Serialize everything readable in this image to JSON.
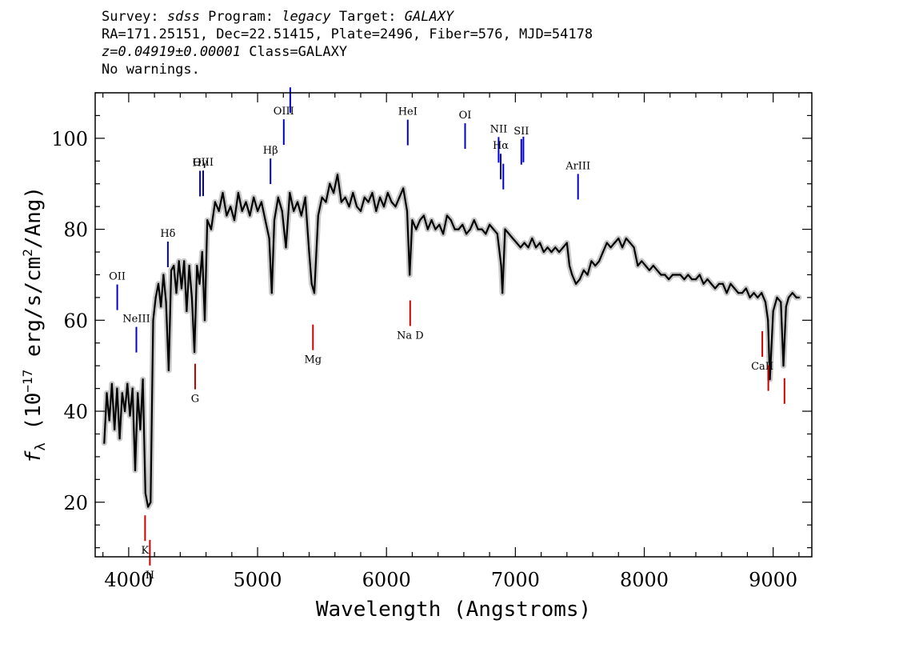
{
  "header": {
    "line1": {
      "survey_label": "Survey: ",
      "survey": "sdss",
      "program_label": " Program: ",
      "program": "legacy",
      "target_label": " Target: ",
      "target": "GALAXY"
    },
    "line2": "RA=171.25151, Dec=22.51415, Plate=2496, Fiber=576, MJD=54178",
    "line3": {
      "redshift": "z=0.04919±0.00001",
      "class": " Class=GALAXY"
    },
    "line4": "No warnings."
  },
  "chart_data": {
    "type": "line",
    "xlabel": "Wavelength (Angstroms)",
    "ylabel": "f_λ (10^-17 erg/s/cm^2/Ang)",
    "ylabel_parts": {
      "f": "f",
      "sub": "λ",
      "units_a": " (10",
      "exp1": "−17",
      "units_b": " erg/s/cm",
      "exp2": "2",
      "units_c": "/Ang)"
    },
    "xlim": [
      3740,
      9300
    ],
    "ylim": [
      8,
      110
    ],
    "x_ticks": [
      4000,
      5000,
      6000,
      7000,
      8000,
      9000
    ],
    "y_ticks": [
      20,
      40,
      60,
      80,
      100
    ],
    "grid": false,
    "series": [
      {
        "style": "spectrum",
        "color": "#000000",
        "error_color": "#c8c8c8",
        "x": [
          3810,
          3830,
          3850,
          3870,
          3890,
          3910,
          3930,
          3950,
          3970,
          3990,
          4010,
          4030,
          4050,
          4070,
          4090,
          4110,
          4130,
          4150,
          4170,
          4190,
          4210,
          4230,
          4250,
          4270,
          4290,
          4310,
          4330,
          4350,
          4370,
          4390,
          4410,
          4430,
          4450,
          4470,
          4490,
          4510,
          4530,
          4550,
          4570,
          4590,
          4610,
          4640,
          4670,
          4700,
          4730,
          4760,
          4790,
          4820,
          4850,
          4880,
          4910,
          4940,
          4970,
          5000,
          5030,
          5060,
          5090,
          5110,
          5130,
          5160,
          5190,
          5220,
          5250,
          5280,
          5310,
          5340,
          5370,
          5400,
          5420,
          5440,
          5470,
          5500,
          5530,
          5560,
          5590,
          5620,
          5650,
          5680,
          5710,
          5740,
          5770,
          5800,
          5830,
          5860,
          5890,
          5920,
          5950,
          5980,
          6010,
          6040,
          6070,
          6100,
          6130,
          6160,
          6180,
          6200,
          6230,
          6260,
          6290,
          6320,
          6350,
          6380,
          6410,
          6440,
          6470,
          6500,
          6530,
          6560,
          6590,
          6620,
          6650,
          6680,
          6710,
          6740,
          6770,
          6800,
          6830,
          6860,
          6890,
          6900,
          6920,
          6950,
          6980,
          7010,
          7040,
          7070,
          7100,
          7130,
          7160,
          7190,
          7220,
          7250,
          7280,
          7310,
          7340,
          7370,
          7400,
          7420,
          7440,
          7470,
          7500,
          7530,
          7560,
          7590,
          7620,
          7650,
          7680,
          7710,
          7740,
          7770,
          7800,
          7830,
          7860,
          7890,
          7920,
          7950,
          7980,
          8010,
          8040,
          8070,
          8100,
          8130,
          8160,
          8190,
          8220,
          8250,
          8280,
          8310,
          8340,
          8370,
          8400,
          8430,
          8460,
          8490,
          8520,
          8550,
          8580,
          8610,
          8640,
          8670,
          8700,
          8730,
          8760,
          8790,
          8820,
          8850,
          8880,
          8910,
          8940,
          8960,
          8975,
          9000,
          9030,
          9060,
          9080,
          9100,
          9120,
          9150,
          9180,
          9200
        ],
        "y": [
          33,
          44,
          38,
          46,
          36,
          45,
          34,
          44,
          40,
          46,
          39,
          45,
          27,
          44,
          36,
          47,
          22,
          19,
          20,
          60,
          65,
          68,
          63,
          70,
          64,
          49,
          71,
          72,
          66,
          73,
          67,
          73,
          62,
          72,
          65,
          53,
          72,
          68,
          75,
          60,
          82,
          80,
          86,
          84,
          88,
          83,
          85,
          82,
          88,
          84,
          86,
          83,
          87,
          84,
          86,
          82,
          78,
          66,
          82,
          87,
          84,
          76,
          88,
          84,
          86,
          83,
          87,
          75,
          68,
          66,
          83,
          87,
          86,
          90,
          88,
          92,
          86,
          87,
          85,
          88,
          85,
          84,
          87,
          86,
          88,
          84,
          87,
          85,
          88,
          86,
          85,
          87,
          89,
          84,
          70,
          82,
          80,
          82,
          83,
          80,
          82,
          80,
          81,
          79,
          83,
          82,
          80,
          80,
          81,
          79,
          80,
          82,
          80,
          80,
          79,
          81,
          80,
          79,
          72,
          66,
          80,
          79,
          78,
          77,
          76,
          77,
          76,
          78,
          76,
          77,
          75,
          76,
          75,
          76,
          75,
          76,
          77,
          72,
          70,
          68,
          69,
          71,
          70,
          73,
          72,
          73,
          75,
          77,
          76,
          77,
          78,
          76,
          78,
          77,
          76,
          72,
          73,
          72,
          71,
          72,
          71,
          70,
          70,
          69,
          70,
          70,
          70,
          69,
          70,
          69,
          69,
          70,
          68,
          69,
          68,
          67,
          68,
          68,
          66,
          68,
          67,
          66,
          66,
          67,
          65,
          66,
          65,
          66,
          64,
          60,
          47,
          62,
          65,
          64,
          50,
          63,
          65,
          66,
          65,
          65
        ]
      }
    ],
    "annotations": [
      {
        "label": "OII",
        "x": 3728,
        "color": "blue",
        "side": "top"
      },
      {
        "label": "NeIII",
        "x": 3869,
        "color": "blue",
        "side": "top"
      },
      {
        "label": "Hδ",
        "x": 4102,
        "color": "blue",
        "side": "top"
      },
      {
        "label": "Hγ",
        "x": 4340,
        "color": "blue",
        "side": "top"
      },
      {
        "label": "OIII",
        "x": 4363,
        "color": "blue",
        "side": "top"
      },
      {
        "label": "Hβ",
        "x": 4861,
        "color": "blue",
        "side": "top"
      },
      {
        "label": "OIII",
        "x": 4959,
        "color": "blue",
        "side": "top"
      },
      {
        "label": "OIII",
        "x": 5007,
        "color": "blue",
        "side": "top"
      },
      {
        "label": "HeI",
        "x": 5876,
        "color": "blue",
        "side": "top"
      },
      {
        "label": "OI",
        "x": 6300,
        "color": "blue",
        "side": "top"
      },
      {
        "label": "NII",
        "x": 6548,
        "color": "blue",
        "side": "top"
      },
      {
        "label": "Hα",
        "x": 6563,
        "color": "blue",
        "side": "top"
      },
      {
        "label": "NII",
        "x": 6583,
        "color": "blue",
        "side": "top"
      },
      {
        "label": "SII",
        "x": 6716,
        "color": "blue",
        "side": "top"
      },
      {
        "label": "SII",
        "x": 6731,
        "color": "blue",
        "side": "top"
      },
      {
        "label": "ArIII",
        "x": 7135,
        "color": "blue",
        "side": "top"
      },
      {
        "label": "K",
        "x": 3934,
        "color": "red",
        "side": "bottom"
      },
      {
        "label": "H",
        "x": 3969,
        "color": "red",
        "side": "bottom"
      },
      {
        "label": "G",
        "x": 4304,
        "color": "red",
        "side": "bottom"
      },
      {
        "label": "Mg",
        "x": 5175,
        "color": "red",
        "side": "bottom"
      },
      {
        "label": "Na D",
        "x": 5894,
        "color": "red",
        "side": "bottom"
      },
      {
        "label": "CaII",
        "x": 8498,
        "color": "red",
        "side": "bottom"
      },
      {
        "label": "CaII",
        "x": 8542,
        "color": "red",
        "side": "bottom"
      },
      {
        "label": "CaII",
        "x": 8662,
        "color": "red",
        "side": "bottom"
      }
    ]
  }
}
